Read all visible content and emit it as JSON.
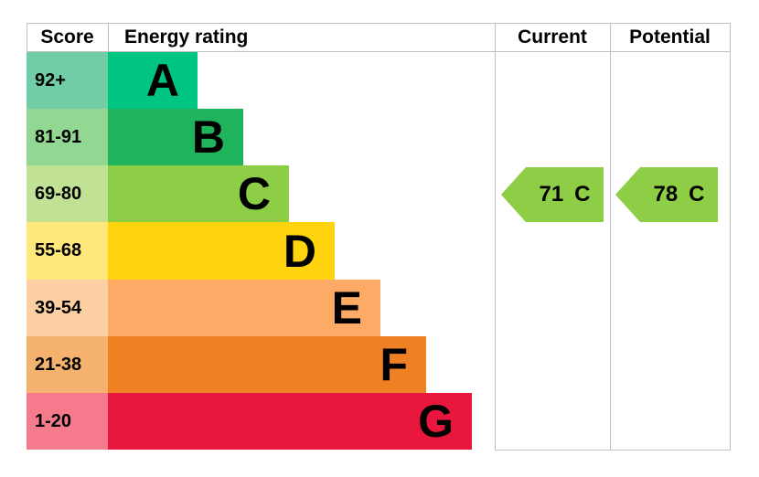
{
  "header": {
    "score": "Score",
    "energy": "Energy rating",
    "current": "Current",
    "potential": "Potential"
  },
  "chart_data": {
    "type": "bar",
    "orientation": "horizontal",
    "columns": [
      "Score",
      "Energy rating",
      "Current",
      "Potential"
    ],
    "bands": [
      {
        "label": "A",
        "score_range": "92+",
        "bar_color": "#00c581",
        "range_color": "#70cda5"
      },
      {
        "label": "B",
        "score_range": "81-91",
        "bar_color": "#1fb35c",
        "range_color": "#92d893"
      },
      {
        "label": "C",
        "score_range": "69-80",
        "bar_color": "#8dce46",
        "range_color": "#c1e294"
      },
      {
        "label": "D",
        "score_range": "55-68",
        "bar_color": "#ffd30d",
        "range_color": "#ffe87b"
      },
      {
        "label": "E",
        "score_range": "39-54",
        "bar_color": "#fcaa65",
        "range_color": "#fdd0a4"
      },
      {
        "label": "F",
        "score_range": "21-38",
        "bar_color": "#ef8023",
        "range_color": "#f5b26e"
      },
      {
        "label": "G",
        "score_range": "1-20",
        "bar_color": "#e9173d",
        "range_color": "#f57a8b"
      }
    ],
    "markers": [
      {
        "column": "Current",
        "value": 71,
        "band": "C",
        "color": "#8dce46"
      },
      {
        "column": "Potential",
        "value": 78,
        "band": "C",
        "color": "#8dce46"
      }
    ]
  },
  "current_arrow": {
    "value": "71",
    "band": "C"
  },
  "potential_arrow": {
    "value": "78",
    "band": "C"
  },
  "colors": {
    "border": "#c0c0c0",
    "arrow_fill": "#8dce46",
    "text": "#000000"
  }
}
